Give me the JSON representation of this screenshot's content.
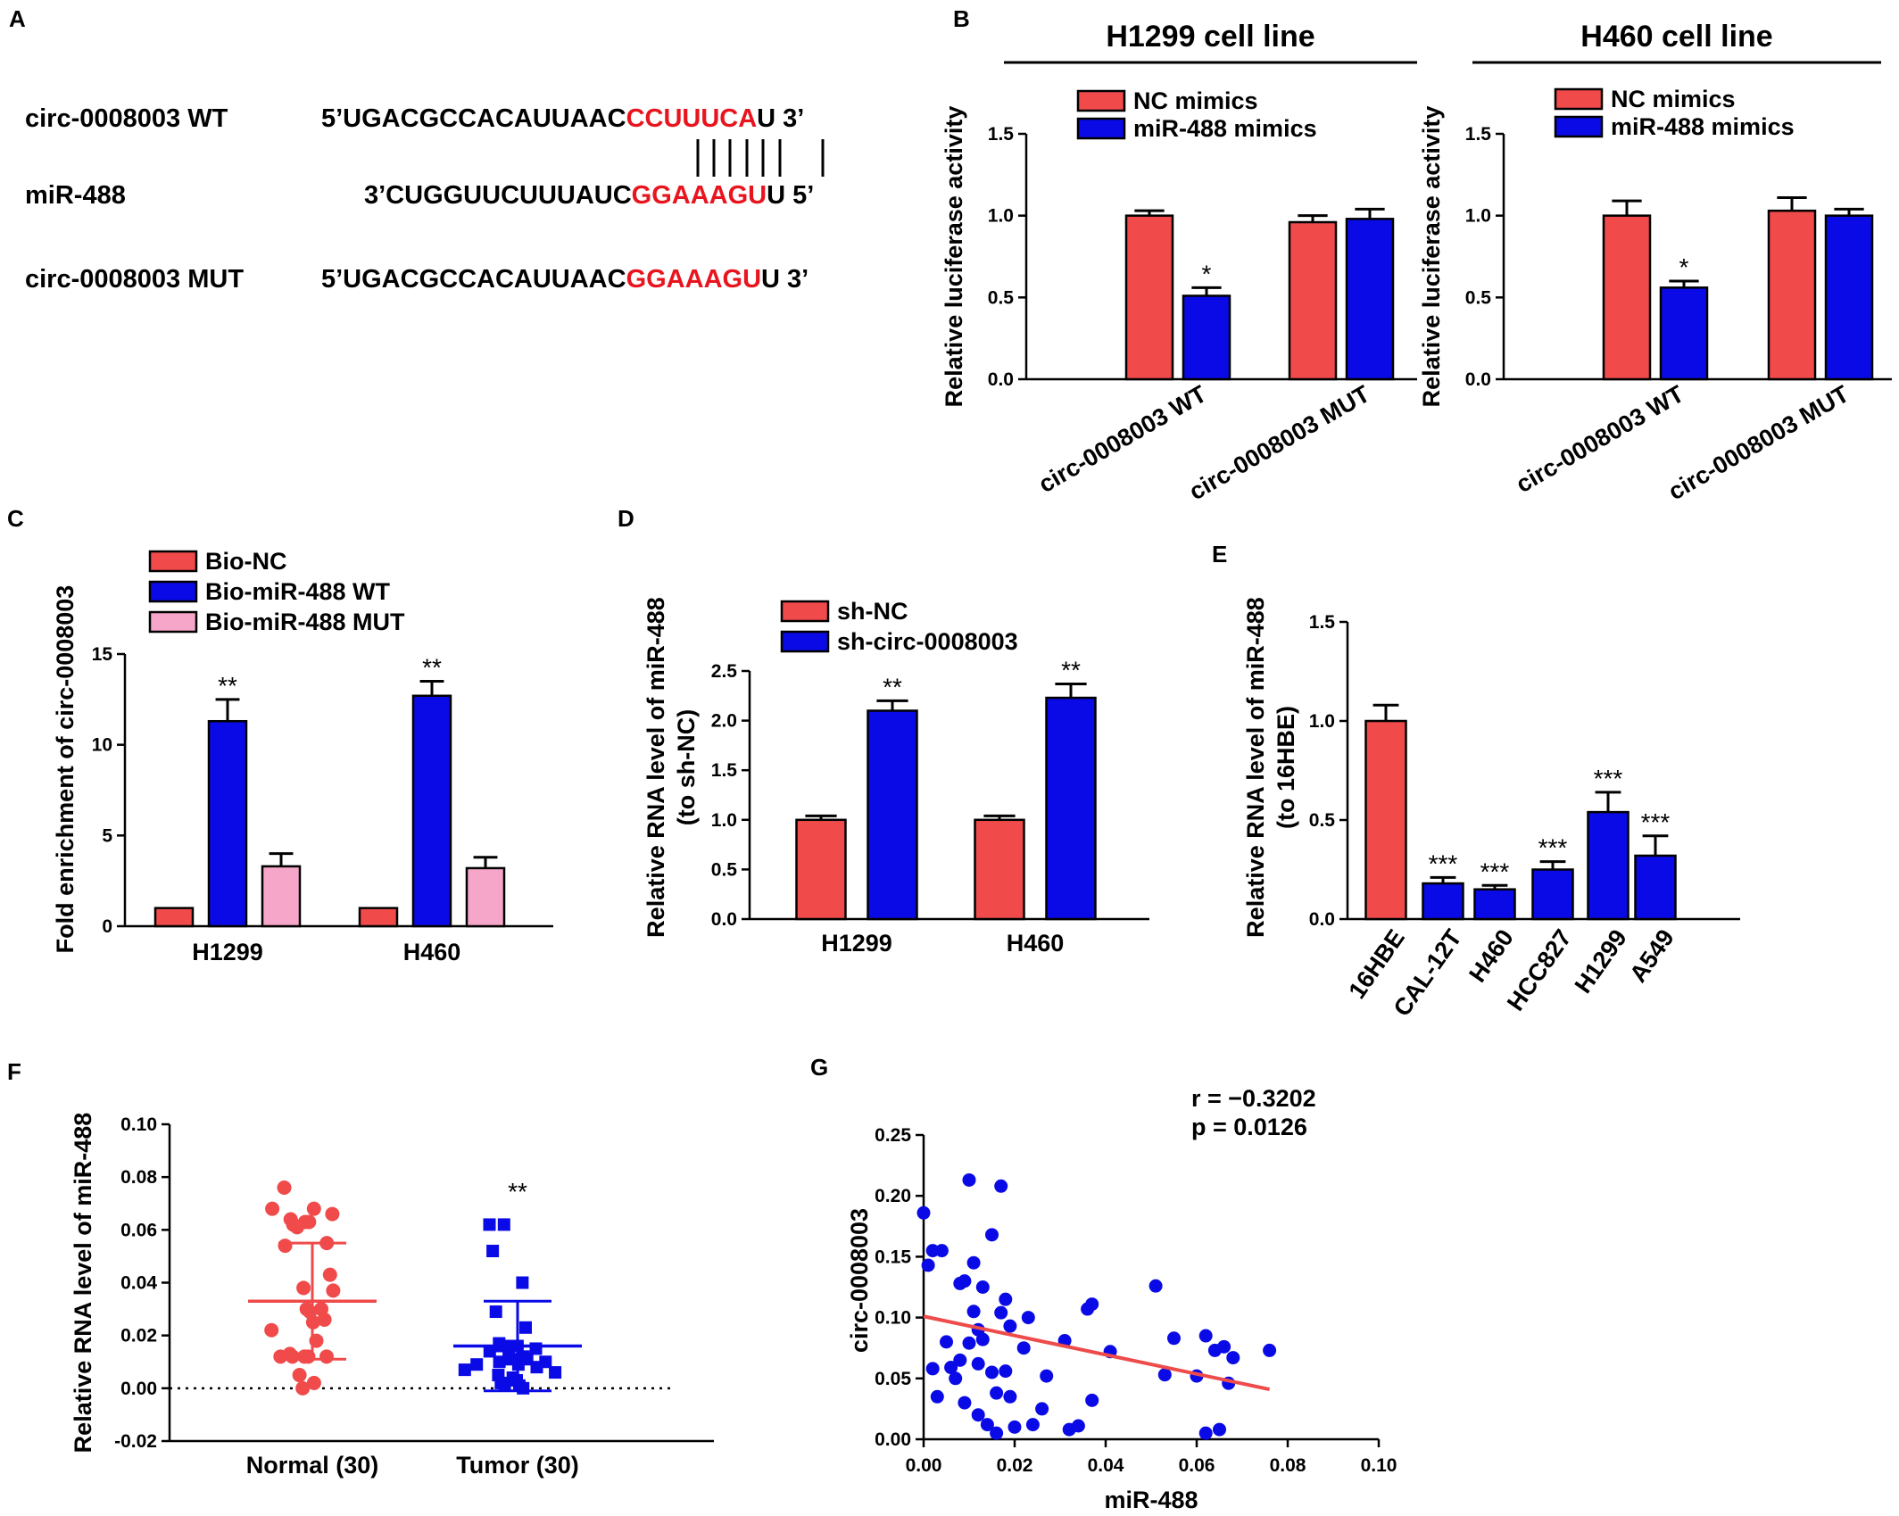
{
  "colors": {
    "red": "#f04a4a",
    "blue": "#0a0ae6",
    "pink": "#f6a6c8",
    "black": "#000000",
    "regression": "#ee4b4b"
  },
  "panels": {
    "A": {
      "label": "A",
      "rows": [
        {
          "name": "circ-0008003 WT",
          "prefix": "5’UGACGCCACAUUAAC",
          "highlight": "CCUUUCA",
          "suffix": "U 3’"
        },
        {
          "name": "miR-488",
          "prefix": "3’CUGGUUCUUUAUC",
          "highlight": "GGAAAGU",
          "suffix": "U 5’"
        },
        {
          "name": "circ-0008003 MUT",
          "prefix": "5’UGACGCCACAUUAAC",
          "highlight": "GGAAAGU",
          "suffix": "U 3’"
        }
      ]
    },
    "B": {
      "label": "B"
    },
    "C": {
      "label": "C"
    },
    "D": {
      "label": "D"
    },
    "E": {
      "label": "E"
    },
    "F": {
      "label": "F"
    },
    "G": {
      "label": "G"
    }
  },
  "chart_data": [
    {
      "id": "B1",
      "type": "bar",
      "panel": "B",
      "title": "H1299 cell line",
      "ylabel": "Relative luciferase activity",
      "ylim": [
        0,
        1.5
      ],
      "yticks": [
        "0.0",
        "0.5",
        "1.0",
        "1.5"
      ],
      "categories": [
        "circ-0008003 WT",
        "circ-0008003 MUT"
      ],
      "series": [
        {
          "name": "NC mimics",
          "color": "red",
          "values": [
            1.0,
            0.96
          ],
          "errors": [
            0.03,
            0.04
          ]
        },
        {
          "name": "miR-488 mimics",
          "color": "blue",
          "values": [
            0.51,
            0.98
          ],
          "errors": [
            0.05,
            0.06
          ]
        }
      ],
      "annotations": [
        {
          "series": 1,
          "category": 0,
          "text": "*"
        }
      ]
    },
    {
      "id": "B2",
      "type": "bar",
      "panel": "B",
      "title": "H460 cell line",
      "ylabel": "Relative luciferase activity",
      "ylim": [
        0,
        1.5
      ],
      "yticks": [
        "0.0",
        "0.5",
        "1.0",
        "1.5"
      ],
      "categories": [
        "circ-0008003 WT",
        "circ-0008003 MUT"
      ],
      "series": [
        {
          "name": "NC mimics",
          "color": "red",
          "values": [
            1.0,
            1.03
          ],
          "errors": [
            0.09,
            0.08
          ]
        },
        {
          "name": "miR-488 mimics",
          "color": "blue",
          "values": [
            0.56,
            1.0
          ],
          "errors": [
            0.04,
            0.04
          ]
        }
      ],
      "annotations": [
        {
          "series": 1,
          "category": 0,
          "text": "*"
        }
      ]
    },
    {
      "id": "C",
      "type": "bar",
      "panel": "C",
      "ylabel": "Fold enrichment of circ-0008003",
      "ylim": [
        0,
        15
      ],
      "yticks": [
        "0",
        "5",
        "10",
        "15"
      ],
      "categories": [
        "H1299",
        "H460"
      ],
      "series": [
        {
          "name": "Bio-NC",
          "color": "red",
          "values": [
            1.0,
            1.0
          ],
          "errors": [
            0,
            0
          ]
        },
        {
          "name": "Bio-miR-488 WT",
          "color": "blue",
          "values": [
            11.3,
            12.7
          ],
          "errors": [
            1.2,
            0.8
          ]
        },
        {
          "name": "Bio-miR-488 MUT",
          "color": "pink",
          "values": [
            3.3,
            3.2
          ],
          "errors": [
            0.7,
            0.6
          ]
        }
      ],
      "annotations": [
        {
          "series": 1,
          "category": 0,
          "text": "**"
        },
        {
          "series": 1,
          "category": 1,
          "text": "**"
        }
      ]
    },
    {
      "id": "D",
      "type": "bar",
      "panel": "D",
      "ylabel": "Relative RNA level of miR-488\n(to sh-NC)",
      "ylim": [
        0,
        2.5
      ],
      "yticks": [
        "0.0",
        "0.5",
        "1.0",
        "1.5",
        "2.0",
        "2.5"
      ],
      "categories": [
        "H1299",
        "H460"
      ],
      "series": [
        {
          "name": "sh-NC",
          "color": "red",
          "values": [
            1.0,
            1.0
          ],
          "errors": [
            0.04,
            0.04
          ]
        },
        {
          "name": "sh-circ-0008003",
          "color": "blue",
          "values": [
            2.1,
            2.23
          ],
          "errors": [
            0.1,
            0.14
          ]
        }
      ],
      "annotations": [
        {
          "series": 1,
          "category": 0,
          "text": "**"
        },
        {
          "series": 1,
          "category": 1,
          "text": "**"
        }
      ]
    },
    {
      "id": "E",
      "type": "bar",
      "panel": "E",
      "ylabel": "Relative RNA level of miR-488\n(to 16HBE)",
      "ylim": [
        0,
        1.5
      ],
      "yticks": [
        "0.0",
        "0.5",
        "1.0",
        "1.5"
      ],
      "categories": [
        "16HBE",
        "CAL-12T",
        "H460",
        "HCC827",
        "H1299",
        "A549"
      ],
      "values": [
        1.0,
        0.18,
        0.15,
        0.25,
        0.54,
        0.32
      ],
      "errors": [
        0.08,
        0.03,
        0.02,
        0.04,
        0.1,
        0.1
      ],
      "bar_colors": [
        "red",
        "blue",
        "blue",
        "blue",
        "blue",
        "blue"
      ],
      "annotations": [
        "",
        "***",
        "***",
        "***",
        "***",
        "***"
      ]
    },
    {
      "id": "F",
      "type": "scatter",
      "panel": "F",
      "ylabel": "Relative RNA level of miR-488",
      "ylim": [
        -0.02,
        0.1
      ],
      "yticks": [
        "-0.02",
        "0.00",
        "0.02",
        "0.04",
        "0.06",
        "0.08",
        "0.10"
      ],
      "categories": [
        "Normal (30)",
        "Tumor (30)"
      ],
      "groups": [
        {
          "name": "Normal (30)",
          "color": "red",
          "marker": "circle",
          "mean": 0.033,
          "sd": 0.022,
          "values": [
            0.076,
            0.068,
            0.068,
            0.066,
            0.064,
            0.063,
            0.063,
            0.062,
            0.061,
            0.055,
            0.054,
            0.043,
            0.038,
            0.037,
            0.03,
            0.03,
            0.029,
            0.026,
            0.025,
            0.022,
            0.018,
            0.013,
            0.012,
            0.012,
            0.012,
            0.012,
            0.012,
            0.005,
            0.002,
            0.0
          ]
        },
        {
          "name": "Tumor (30)",
          "color": "blue",
          "marker": "square",
          "mean": 0.016,
          "sd": 0.017,
          "values": [
            0.062,
            0.062,
            0.052,
            0.04,
            0.029,
            0.023,
            0.017,
            0.016,
            0.016,
            0.016,
            0.015,
            0.014,
            0.013,
            0.012,
            0.011,
            0.011,
            0.01,
            0.01,
            0.009,
            0.009,
            0.008,
            0.007,
            0.006,
            0.005,
            0.004,
            0.003,
            0.002,
            0.001,
            0.001,
            0.0
          ]
        }
      ],
      "annotations": [
        {
          "group": 1,
          "text": "**"
        }
      ]
    },
    {
      "id": "G",
      "type": "scatter",
      "panel": "G",
      "xlabel": "miR-488",
      "ylabel": "circ-0008003",
      "xlim": [
        0,
        0.1
      ],
      "ylim": [
        0,
        0.25
      ],
      "xticks": [
        "0.00",
        "0.02",
        "0.04",
        "0.06",
        "0.08",
        "0.10"
      ],
      "yticks": [
        "0.00",
        "0.05",
        "0.10",
        "0.15",
        "0.20",
        "0.25"
      ],
      "stats": [
        "r = −0.3202",
        "p = 0.0126"
      ],
      "regression": {
        "x": [
          0.0,
          0.076
        ],
        "y": [
          0.101,
          0.041
        ]
      },
      "points": [
        [
          0.0,
          0.186
        ],
        [
          0.001,
          0.143
        ],
        [
          0.002,
          0.155
        ],
        [
          0.002,
          0.058
        ],
        [
          0.003,
          0.035
        ],
        [
          0.004,
          0.155
        ],
        [
          0.005,
          0.08
        ],
        [
          0.006,
          0.059
        ],
        [
          0.007,
          0.05
        ],
        [
          0.008,
          0.128
        ],
        [
          0.008,
          0.065
        ],
        [
          0.009,
          0.13
        ],
        [
          0.009,
          0.03
        ],
        [
          0.01,
          0.213
        ],
        [
          0.01,
          0.079
        ],
        [
          0.011,
          0.145
        ],
        [
          0.011,
          0.105
        ],
        [
          0.012,
          0.09
        ],
        [
          0.012,
          0.062
        ],
        [
          0.012,
          0.02
        ],
        [
          0.013,
          0.125
        ],
        [
          0.013,
          0.082
        ],
        [
          0.014,
          0.012
        ],
        [
          0.015,
          0.168
        ],
        [
          0.015,
          0.055
        ],
        [
          0.016,
          0.038
        ],
        [
          0.016,
          0.005
        ],
        [
          0.017,
          0.208
        ],
        [
          0.017,
          0.104
        ],
        [
          0.018,
          0.115
        ],
        [
          0.018,
          0.056
        ],
        [
          0.019,
          0.093
        ],
        [
          0.019,
          0.035
        ],
        [
          0.02,
          0.01
        ],
        [
          0.022,
          0.075
        ],
        [
          0.023,
          0.1
        ],
        [
          0.024,
          0.012
        ],
        [
          0.026,
          0.025
        ],
        [
          0.027,
          0.052
        ],
        [
          0.031,
          0.081
        ],
        [
          0.032,
          0.008
        ],
        [
          0.034,
          0.011
        ],
        [
          0.036,
          0.107
        ],
        [
          0.037,
          0.111
        ],
        [
          0.037,
          0.032
        ],
        [
          0.041,
          0.072
        ],
        [
          0.051,
          0.126
        ],
        [
          0.053,
          0.053
        ],
        [
          0.055,
          0.083
        ],
        [
          0.06,
          0.052
        ],
        [
          0.062,
          0.085
        ],
        [
          0.062,
          0.005
        ],
        [
          0.064,
          0.073
        ],
        [
          0.065,
          0.008
        ],
        [
          0.066,
          0.076
        ],
        [
          0.067,
          0.046
        ],
        [
          0.068,
          0.067
        ],
        [
          0.076,
          0.073
        ]
      ]
    }
  ]
}
